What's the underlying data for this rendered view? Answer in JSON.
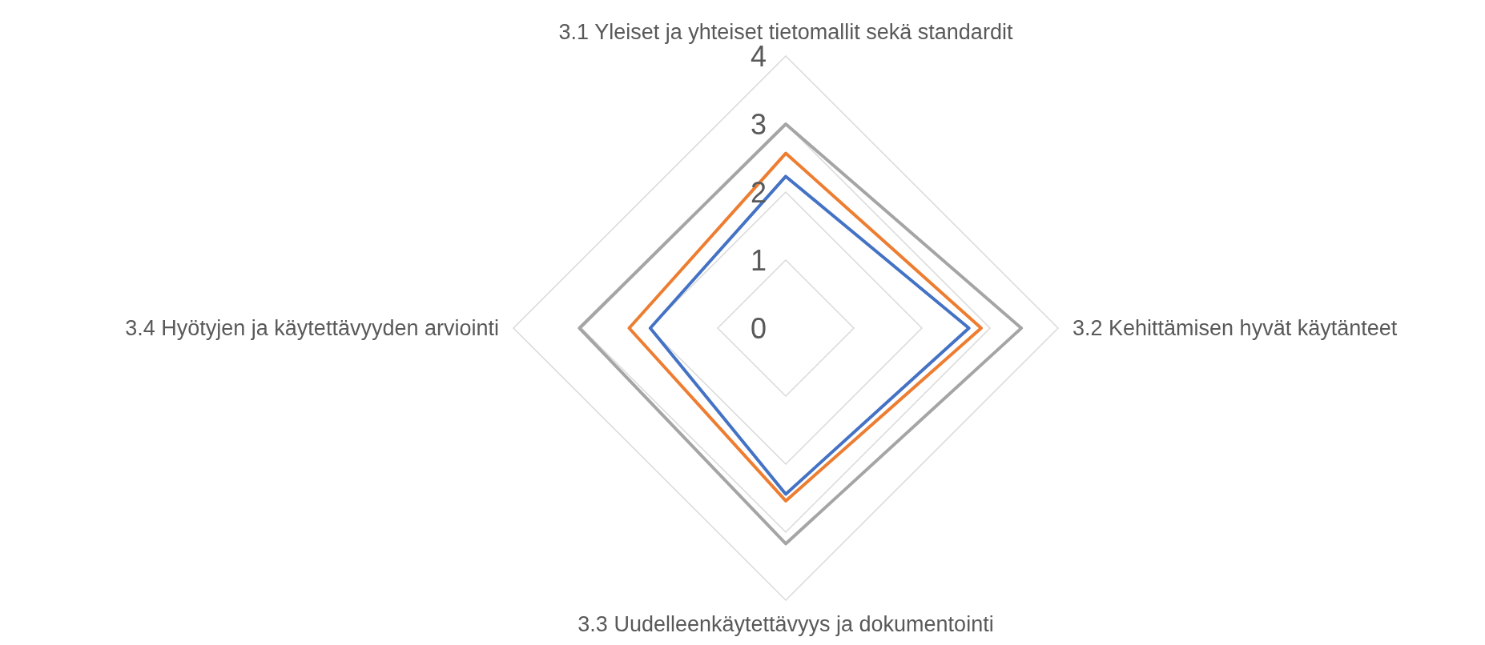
{
  "chart_data": {
    "type": "radar",
    "categories": [
      "3.1 Yleiset ja yhteiset tietomallit sekä standardit",
      "3.2 Kehittämisen hyvät käytänteet",
      "3.3 Uudelleenkäytettävyys ja dokumentointi",
      "3.4 Hyötyjen ja käytettävyyden arviointi"
    ],
    "series": [
      {
        "color": "#4472c4",
        "values": [
          2.23,
          2.69,
          2.44,
          1.99
        ]
      },
      {
        "color": "#ed7d31",
        "values": [
          2.57,
          2.87,
          2.54,
          2.3
        ]
      },
      {
        "color": "#a5a5a5",
        "values": [
          3.0,
          3.46,
          3.17,
          3.03
        ]
      }
    ],
    "ylim": [
      0,
      4
    ],
    "yticks": [
      0,
      1,
      2,
      3,
      4
    ],
    "grid": true,
    "marker": "none"
  }
}
